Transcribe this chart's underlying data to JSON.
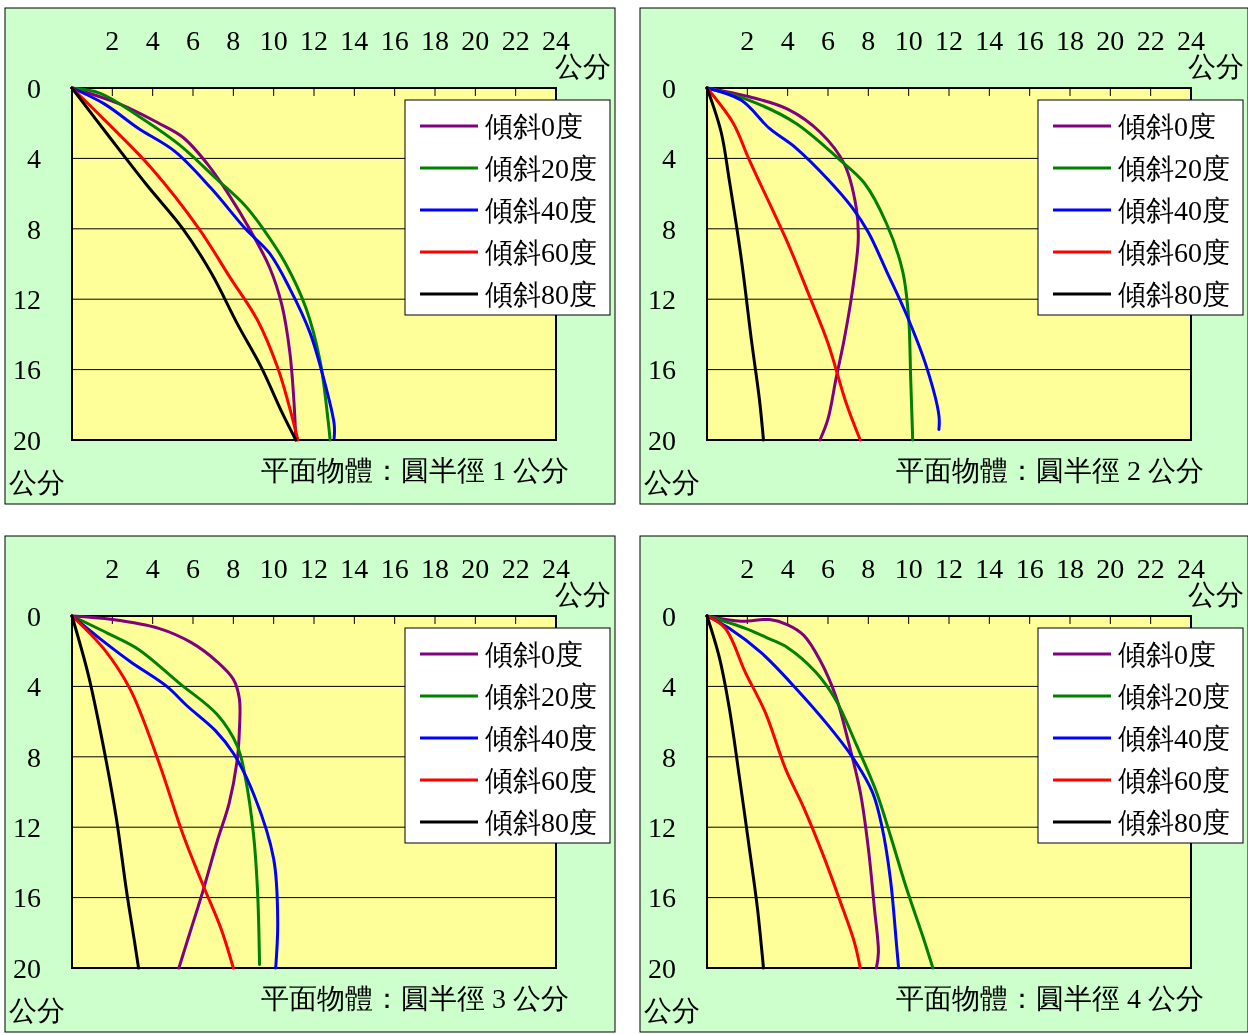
{
  "chart_data": [
    {
      "type": "line",
      "title": "平面物體：圓半徑 1 公分",
      "xlabel": "公分",
      "ylabel": "公分",
      "xlim": [
        0,
        24
      ],
      "xticks": [
        2,
        4,
        6,
        8,
        10,
        12,
        14,
        16,
        18,
        20,
        22,
        24
      ],
      "ylim": [
        20,
        0
      ],
      "yticks": [
        0,
        4,
        8,
        12,
        16,
        20
      ],
      "grid": "y",
      "legend": "top right",
      "series": [
        {
          "name": "傾斜0度",
          "color": "#800080",
          "x": [
            0,
            2.35,
            4.3,
            5.5,
            6.7,
            7.8,
            8.8,
            9.8,
            10.4,
            10.8,
            11.0,
            11.1
          ],
          "values": [
            0,
            0.9,
            2.0,
            2.8,
            4.3,
            6.1,
            8.0,
            10.2,
            12.3,
            15.0,
            17.7,
            20
          ]
        },
        {
          "name": "傾斜20度",
          "color": "#008000",
          "x": [
            0,
            1.4,
            3.3,
            5.3,
            7.2,
            8.6,
            9.6,
            10.6,
            11.6,
            12.3,
            12.7,
            12.8
          ],
          "values": [
            0,
            0.3,
            1.6,
            3.2,
            5.2,
            6.7,
            8.2,
            10.0,
            12.5,
            15.5,
            18.9,
            20
          ]
        },
        {
          "name": "傾斜40度",
          "color": "#0000ff",
          "x": [
            0,
            1.6,
            3.3,
            5.1,
            6.9,
            8.6,
            9.8,
            10.8,
            11.8,
            12.5,
            13.0,
            13.0
          ],
          "values": [
            0,
            0.9,
            2.3,
            3.6,
            5.7,
            8.0,
            9.4,
            11.4,
            13.9,
            16.6,
            19.1,
            19.9
          ]
        },
        {
          "name": "傾斜60度",
          "color": "#ff0000",
          "x": [
            0,
            1.6,
            3.9,
            6.3,
            7.8,
            9.2,
            10.2,
            10.8,
            11.2
          ],
          "values": [
            0,
            1.8,
            4.5,
            8.0,
            10.7,
            13.2,
            15.9,
            18.2,
            20
          ]
        },
        {
          "name": "傾斜80度",
          "color": "#000000",
          "x": [
            0,
            1.8,
            3.7,
            5.5,
            6.9,
            8.2,
            9.4,
            10.4,
            11.1
          ],
          "values": [
            0,
            2.7,
            5.5,
            8.0,
            10.5,
            13.4,
            15.9,
            18.4,
            20
          ]
        }
      ]
    },
    {
      "type": "line",
      "title": "平面物體：圓半徑 2 公分",
      "xlabel": "公分",
      "ylabel": "公分",
      "xlim": [
        0,
        24
      ],
      "xticks": [
        2,
        4,
        6,
        8,
        10,
        12,
        14,
        16,
        18,
        20,
        22,
        24
      ],
      "ylim": [
        20,
        0
      ],
      "yticks": [
        0,
        4,
        8,
        12,
        16,
        20
      ],
      "grid": "y",
      "legend": "top right",
      "series": [
        {
          "name": "傾斜0度",
          "color": "#800080",
          "x": [
            0,
            2.1,
            4.0,
            5.6,
            6.8,
            7.4,
            7.5,
            7.2,
            6.8,
            6.4,
            6.0,
            5.6
          ],
          "values": [
            0,
            0.5,
            1.2,
            2.5,
            4.3,
            6.8,
            8.6,
            11.6,
            14.3,
            16.5,
            18.8,
            20
          ]
        },
        {
          "name": "傾斜20度",
          "color": "#008000",
          "x": [
            0,
            2.1,
            4.4,
            6.6,
            7.8,
            8.9,
            9.7,
            10.0,
            10.1,
            10.2
          ],
          "values": [
            0,
            0.7,
            2.0,
            4.1,
            5.4,
            7.7,
            10.4,
            13.1,
            16.5,
            20
          ]
        },
        {
          "name": "傾斜40度",
          "color": "#0000ff",
          "x": [
            0,
            1.7,
            3.1,
            4.4,
            6.0,
            7.2,
            8.0,
            8.9,
            9.9,
            10.9,
            11.5,
            11.5
          ],
          "values": [
            0,
            0.7,
            2.3,
            3.4,
            5.2,
            6.8,
            8.2,
            10.4,
            12.9,
            15.9,
            18.6,
            19.4
          ]
        },
        {
          "name": "傾斜60度",
          "color": "#ff0000",
          "x": [
            0,
            1.3,
            2.1,
            4.0,
            5.0,
            6.0,
            6.9,
            7.6
          ],
          "values": [
            0,
            2.0,
            4.1,
            8.8,
            11.6,
            14.5,
            17.9,
            20
          ]
        },
        {
          "name": "傾斜80度",
          "color": "#000000",
          "x": [
            0,
            0.7,
            1.1,
            1.7,
            2.2,
            2.6,
            2.8
          ],
          "values": [
            0,
            2.5,
            5.2,
            9.7,
            14.3,
            17.7,
            20
          ]
        }
      ]
    },
    {
      "type": "line",
      "title": "平面物體：圓半徑 3 公分",
      "xlabel": "公分",
      "ylabel": "公分",
      "xlim": [
        0,
        24
      ],
      "xticks": [
        2,
        4,
        6,
        8,
        10,
        12,
        14,
        16,
        18,
        20,
        22,
        24
      ],
      "ylim": [
        20,
        0
      ],
      "yticks": [
        0,
        4,
        8,
        12,
        16,
        20
      ],
      "grid": "y",
      "legend": "top right",
      "series": [
        {
          "name": "傾斜0度",
          "color": "#800080",
          "x": [
            0,
            2.0,
            4.3,
            5.9,
            7.2,
            8.0,
            8.3,
            8.3,
            8.2,
            7.8,
            7.2,
            6.5,
            5.9,
            5.3
          ],
          "values": [
            0,
            0.2,
            0.7,
            1.5,
            2.6,
            3.6,
            4.7,
            6.5,
            8.1,
            10.6,
            12.8,
            15.6,
            17.8,
            20
          ]
        },
        {
          "name": "傾斜20度",
          "color": "#008000",
          "x": [
            0,
            1.8,
            3.3,
            5.3,
            7.2,
            8.2,
            8.6,
            9.0,
            9.2,
            9.3
          ],
          "values": [
            0,
            1.0,
            1.9,
            3.8,
            5.6,
            7.4,
            9.2,
            12.4,
            15.6,
            19.8
          ]
        },
        {
          "name": "傾斜40度",
          "color": "#0000ff",
          "x": [
            0,
            1.4,
            2.9,
            4.7,
            5.7,
            7.1,
            8.0,
            9.0,
            10.0,
            10.2,
            10.1
          ],
          "values": [
            0,
            1.3,
            2.6,
            4.0,
            5.1,
            6.5,
            7.8,
            10.1,
            13.8,
            17.4,
            20
          ]
        },
        {
          "name": "傾斜60度",
          "color": "#ff0000",
          "x": [
            0,
            1.6,
            2.9,
            4.3,
            5.5,
            6.5,
            7.4,
            8.0
          ],
          "values": [
            0,
            1.9,
            4.2,
            8.3,
            12.4,
            15.3,
            17.8,
            20
          ]
        },
        {
          "name": "傾斜80度",
          "color": "#000000",
          "x": [
            0,
            0.8,
            1.4,
            2.2,
            2.7,
            3.1,
            3.3
          ],
          "values": [
            0,
            3.3,
            6.5,
            11.5,
            15.6,
            18.5,
            20
          ]
        }
      ]
    },
    {
      "type": "line",
      "title": "平面物體：圓半徑 4 公分",
      "xlabel": "公分",
      "ylabel": "公分",
      "xlim": [
        0,
        24
      ],
      "xticks": [
        2,
        4,
        6,
        8,
        10,
        12,
        14,
        16,
        18,
        20,
        22,
        24
      ],
      "ylim": [
        20,
        0
      ],
      "yticks": [
        0,
        4,
        8,
        12,
        16,
        20
      ],
      "grid": "y",
      "legend": "top right",
      "series": [
        {
          "name": "傾斜0度",
          "color": "#800080",
          "x": [
            0,
            1.7,
            3.1,
            4.0,
            4.8,
            5.6,
            6.4,
            7.0,
            7.6,
            8.0,
            8.3,
            8.5,
            8.4
          ],
          "values": [
            0,
            0.3,
            0.2,
            0.5,
            1.1,
            2.5,
            4.6,
            7.1,
            10.0,
            13.2,
            16.6,
            19.1,
            20
          ]
        },
        {
          "name": "傾斜20度",
          "color": "#008000",
          "x": [
            0,
            1.9,
            3.1,
            4.0,
            5.4,
            6.4,
            7.4,
            8.4,
            9.1,
            9.9,
            10.7,
            11.2
          ],
          "values": [
            0,
            0.7,
            1.3,
            1.8,
            3.2,
            4.8,
            7.3,
            10.0,
            12.5,
            15.5,
            18.2,
            20
          ]
        },
        {
          "name": "傾斜40度",
          "color": "#0000ff",
          "x": [
            0,
            1.1,
            2.7,
            4.4,
            6.0,
            7.2,
            8.2,
            8.7,
            9.1,
            9.4,
            9.5
          ],
          "values": [
            0,
            0.7,
            2.1,
            4.1,
            6.2,
            8.0,
            10.0,
            12.1,
            15.0,
            18.7,
            20
          ]
        },
        {
          "name": "傾斜60度",
          "color": "#ff0000",
          "x": [
            0,
            0.9,
            1.9,
            2.9,
            3.9,
            4.8,
            5.8,
            6.6,
            7.3,
            7.6
          ],
          "values": [
            0,
            0.7,
            3.2,
            5.5,
            8.7,
            10.9,
            13.7,
            16.2,
            18.5,
            20
          ]
        },
        {
          "name": "傾斜80度",
          "color": "#000000",
          "x": [
            0,
            0.6,
            1.1,
            1.6,
            2.1,
            2.5,
            2.8
          ],
          "values": [
            0,
            2.3,
            5.2,
            9.1,
            13.2,
            16.6,
            20
          ]
        }
      ]
    }
  ]
}
